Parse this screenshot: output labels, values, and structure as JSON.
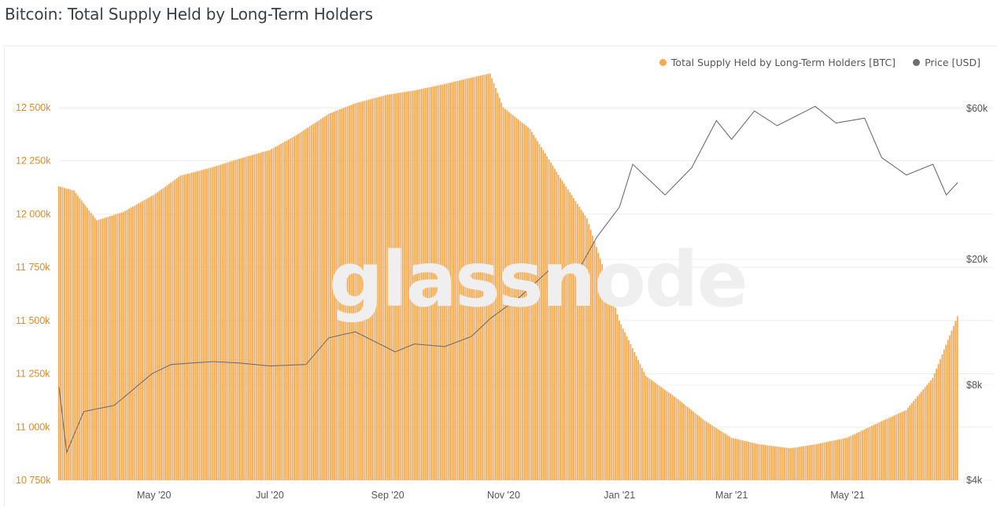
{
  "page_title": "Bitcoin: Total Supply Held by Long-Term Holders",
  "watermark": "glassnode",
  "chart_data": {
    "type": "bar",
    "title": "Bitcoin: Total Supply Held by Long-Term Holders",
    "legend_position": "top-right",
    "grid": true,
    "colors": {
      "supply": "#f7a850",
      "price": "#6e6e6e",
      "left_axis_text": "#e08a2a",
      "right_axis_text": "#555555"
    },
    "x_ticks": [
      "May '20",
      "Jul '20",
      "Sep '20",
      "Nov '20",
      "Jan '21",
      "Mar '21",
      "May '21"
    ],
    "x_tick_dates": [
      "2020-05-01",
      "2020-07-01",
      "2020-09-01",
      "2020-11-01",
      "2021-01-01",
      "2021-03-01",
      "2021-05-01"
    ],
    "x_range": [
      "2020-03-12",
      "2021-06-28"
    ],
    "y_left": {
      "ticks": [
        "10 750k",
        "11 000k",
        "11 250k",
        "11 500k",
        "11 750k",
        "12 000k",
        "12 250k",
        "12 500k"
      ],
      "range": [
        10750000,
        12680000
      ]
    },
    "y_right": {
      "ticks": [
        "$4k",
        "$8k",
        "$20k",
        "$60k"
      ],
      "scale": "log",
      "range": [
        4000,
        80000
      ]
    },
    "series": [
      {
        "name": "Total Supply Held by Long-Term Holders [BTC]",
        "type": "bar",
        "x": [
          "2020-03-12",
          "2020-03-20",
          "2020-04-01",
          "2020-04-15",
          "2020-05-01",
          "2020-05-15",
          "2020-06-01",
          "2020-06-15",
          "2020-07-01",
          "2020-07-15",
          "2020-08-01",
          "2020-08-15",
          "2020-09-01",
          "2020-09-15",
          "2020-10-01",
          "2020-10-15",
          "2020-10-25",
          "2020-11-01",
          "2020-11-15",
          "2020-12-01",
          "2020-12-15",
          "2020-12-25",
          "2021-01-01",
          "2021-01-15",
          "2021-02-01",
          "2021-02-15",
          "2021-03-01",
          "2021-03-15",
          "2021-04-01",
          "2021-04-15",
          "2021-05-01",
          "2021-05-15",
          "2021-06-01",
          "2021-06-15",
          "2021-06-28"
        ],
        "values": [
          12130000,
          12110000,
          11970000,
          12010000,
          12090000,
          12180000,
          12220000,
          12260000,
          12300000,
          12370000,
          12470000,
          12520000,
          12560000,
          12580000,
          12610000,
          12640000,
          12660000,
          12500000,
          12400000,
          12170000,
          11980000,
          11710000,
          11500000,
          11240000,
          11130000,
          11030000,
          10950000,
          10920000,
          10900000,
          10920000,
          10950000,
          11010000,
          11080000,
          11230000,
          11520000
        ]
      },
      {
        "name": "Price [USD]",
        "type": "line",
        "x": [
          "2020-03-12",
          "2020-03-16",
          "2020-03-25",
          "2020-04-10",
          "2020-04-30",
          "2020-05-10",
          "2020-06-01",
          "2020-06-15",
          "2020-07-01",
          "2020-07-20",
          "2020-08-01",
          "2020-08-15",
          "2020-09-05",
          "2020-09-15",
          "2020-10-01",
          "2020-10-15",
          "2020-10-25",
          "2020-11-10",
          "2020-11-25",
          "2020-12-10",
          "2020-12-20",
          "2021-01-01",
          "2021-01-08",
          "2021-01-25",
          "2021-02-08",
          "2021-02-21",
          "2021-03-01",
          "2021-03-13",
          "2021-03-25",
          "2021-04-14",
          "2021-04-25",
          "2021-05-10",
          "2021-05-19",
          "2021-06-01",
          "2021-06-15",
          "2021-06-22",
          "2021-06-28"
        ],
        "values": [
          7900,
          4900,
          6600,
          6900,
          8700,
          9300,
          9500,
          9400,
          9200,
          9300,
          11300,
          11800,
          10200,
          10800,
          10600,
          11400,
          13000,
          15300,
          18500,
          18300,
          23500,
          29300,
          40000,
          32000,
          39000,
          55000,
          48000,
          59000,
          53000,
          61000,
          54000,
          56000,
          42000,
          37000,
          40000,
          32000,
          35000
        ]
      }
    ]
  }
}
